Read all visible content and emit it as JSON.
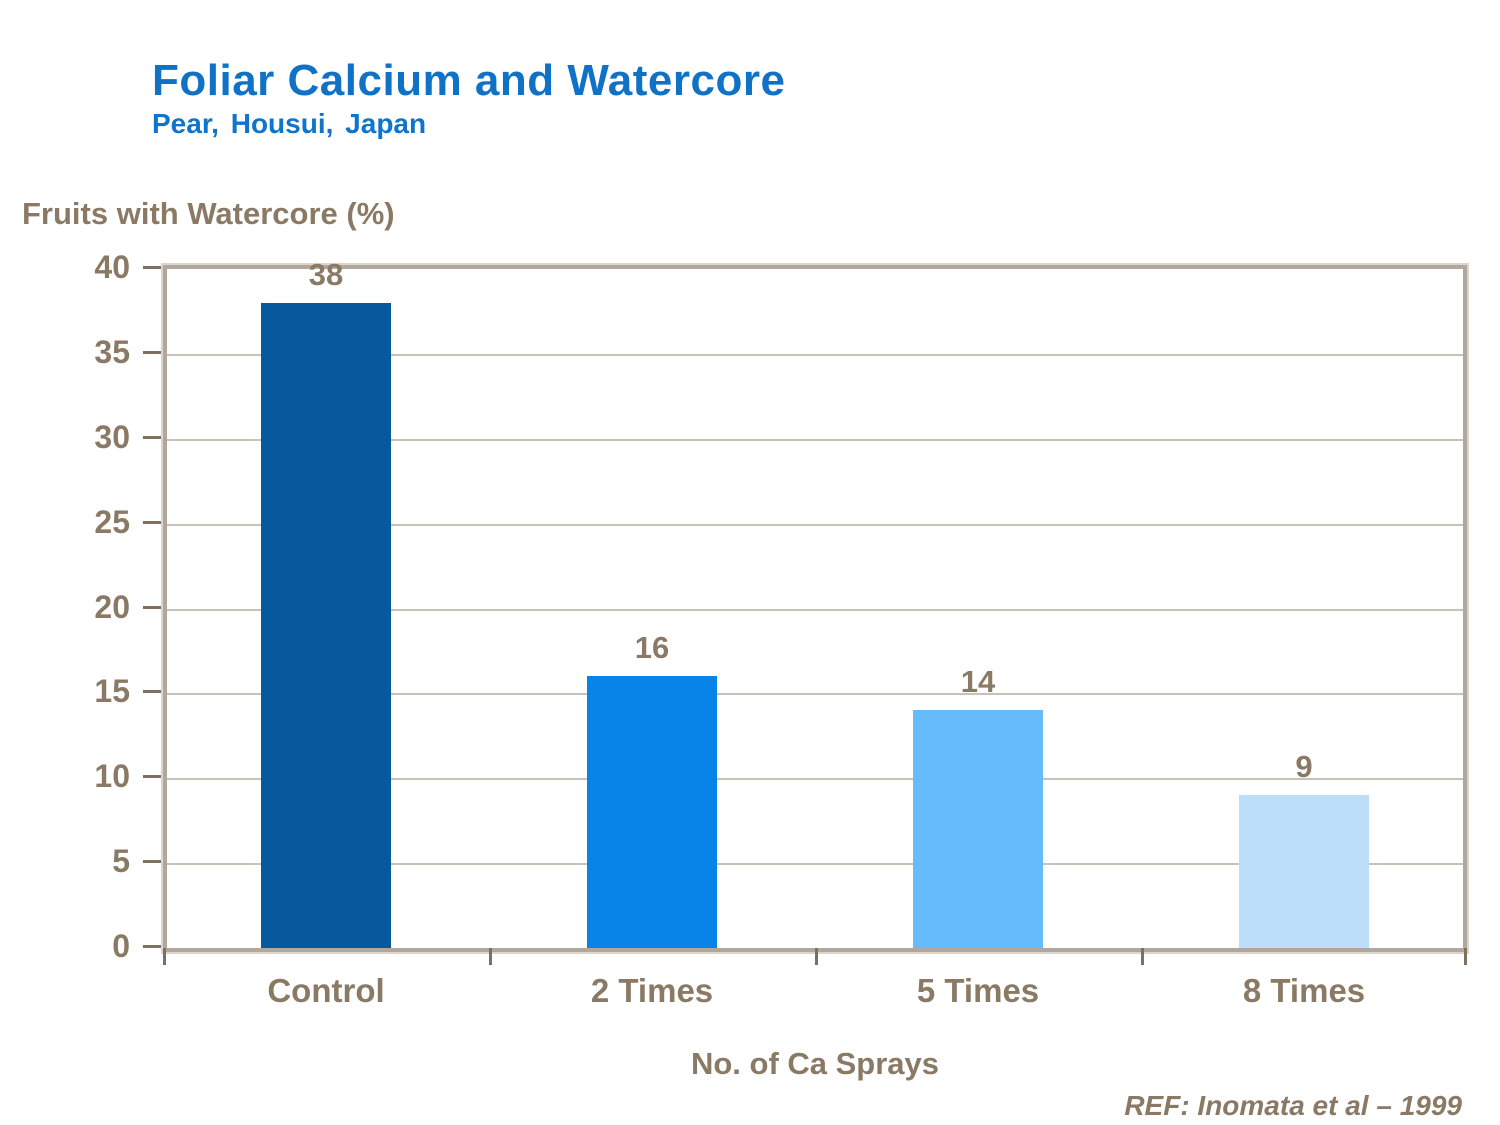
{
  "header": {
    "title": "Foliar Calcium and Watercore",
    "subtitle": "Pear, Housui, Japan"
  },
  "axes": {
    "y_title": "Fruits with Watercore (%)",
    "x_title": "No. of Ca Sprays"
  },
  "footer": {
    "reference": "REF: Inomata et al – 1999"
  },
  "colors": {
    "title_blue": "#0F72C6",
    "text_brown": "#8A7964",
    "frame_border": "#B2A79C",
    "gridline": "#C9C0B7",
    "tick": "#7E6F5F",
    "bar_colors": [
      "#05599C",
      "#0884E8",
      "#66BCFA",
      "#BDDEF8"
    ]
  },
  "chart_data": {
    "type": "bar",
    "title": "Foliar Calcium and Watercore",
    "subtitle": "Pear, Housui, Japan",
    "categories": [
      "Control",
      "2 Times",
      "5 Times",
      "8 Times"
    ],
    "values": [
      38,
      16,
      14,
      9
    ],
    "value_labels": [
      "38",
      "16",
      "14",
      "9"
    ],
    "bar_colors": [
      "#05599C",
      "#0884E8",
      "#66BCFA",
      "#BDDEF8"
    ],
    "xlabel": "No. of Ca Sprays",
    "ylabel": "Fruits with Watercore (%)",
    "ylim": [
      0,
      40
    ],
    "ytick_step": 5,
    "yticks": [
      0,
      5,
      10,
      15,
      20,
      25,
      30,
      35,
      40
    ],
    "grid": true,
    "legend": false
  }
}
